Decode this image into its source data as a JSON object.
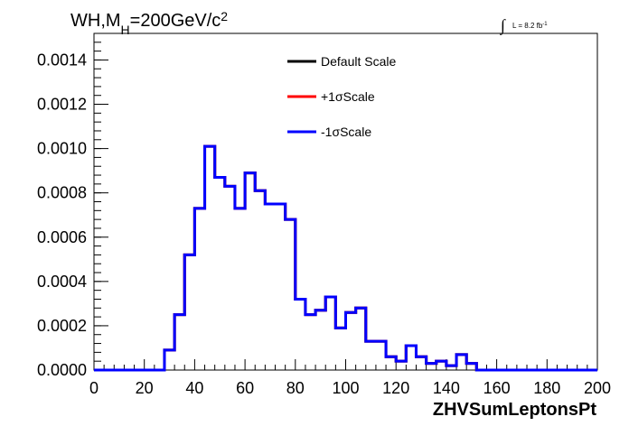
{
  "chart_data": {
    "type": "line",
    "title": "WH,M",
    "title_sub": "H",
    "title_rest": "=200GeV/c",
    "title_sup": "2",
    "lumi": {
      "integral": "∫",
      "text": "L = 8.2 fb",
      "sup": "-1"
    },
    "xlabel": "ZHVSumLeptonsPt",
    "ylabel": "",
    "xlim": [
      0,
      200
    ],
    "ylim": [
      0,
      0.00152
    ],
    "x_ticks": [
      0,
      20,
      40,
      60,
      80,
      100,
      120,
      140,
      160,
      180,
      200
    ],
    "x_tick_labels": [
      "0",
      "20",
      "40",
      "60",
      "80",
      "100",
      "120",
      "140",
      "160",
      "180",
      "200"
    ],
    "y_ticks": [
      0,
      0.0002,
      0.0004,
      0.0006,
      0.0008,
      0.001,
      0.0012,
      0.0014
    ],
    "y_tick_labels": [
      "0.0000",
      "0.0002",
      "0.0004",
      "0.0006",
      "0.0008",
      "0.0010",
      "0.0012",
      "0.0014"
    ],
    "bin_width": 4,
    "bin_edges_start": 0,
    "series": [
      {
        "name": "Default Scale",
        "color": "#000000",
        "values": [
          0,
          0,
          0,
          0,
          0,
          0,
          0,
          9e-05,
          0.00025,
          0.00052,
          0.00073,
          0.00101,
          0.00087,
          0.00083,
          0.00073,
          0.00089,
          0.00081,
          0.00075,
          0.00075,
          0.00068,
          0.00032,
          0.00025,
          0.00027,
          0.00033,
          0.00019,
          0.00026,
          0.00028,
          0.00013,
          0.00013,
          6e-05,
          4e-05,
          0.00011,
          6e-05,
          3e-05,
          4e-05,
          2e-05,
          7e-05,
          3e-05,
          0,
          0,
          0,
          0,
          0,
          0,
          0,
          0,
          0,
          0,
          0,
          0
        ]
      },
      {
        "name": "+1σScale",
        "color": "#ff0000",
        "values": [
          0,
          0,
          0,
          0,
          0,
          0,
          0,
          9e-05,
          0.00025,
          0.00052,
          0.00073,
          0.00101,
          0.00087,
          0.00083,
          0.00073,
          0.00089,
          0.00081,
          0.00075,
          0.00075,
          0.00068,
          0.00032,
          0.00025,
          0.00027,
          0.00033,
          0.00019,
          0.00026,
          0.00028,
          0.00013,
          0.00013,
          6e-05,
          4e-05,
          0.00011,
          6e-05,
          3e-05,
          4e-05,
          2e-05,
          7e-05,
          3e-05,
          0,
          0,
          0,
          0,
          0,
          0,
          0,
          0,
          0,
          0,
          0,
          0
        ]
      },
      {
        "name": "-1σScale",
        "color": "#0000ff",
        "values": [
          0,
          0,
          0,
          0,
          0,
          0,
          0,
          9e-05,
          0.00025,
          0.00052,
          0.00073,
          0.00101,
          0.00087,
          0.00083,
          0.00073,
          0.00089,
          0.00081,
          0.00075,
          0.00075,
          0.00068,
          0.00032,
          0.00025,
          0.00027,
          0.00033,
          0.00019,
          0.00026,
          0.00028,
          0.00013,
          0.00013,
          6e-05,
          4e-05,
          0.00011,
          6e-05,
          3e-05,
          4e-05,
          2e-05,
          7e-05,
          3e-05,
          0,
          0,
          0,
          0,
          0,
          0,
          0,
          0,
          0,
          0,
          0,
          0
        ]
      }
    ],
    "legend_position": "top-center",
    "grid": false
  }
}
